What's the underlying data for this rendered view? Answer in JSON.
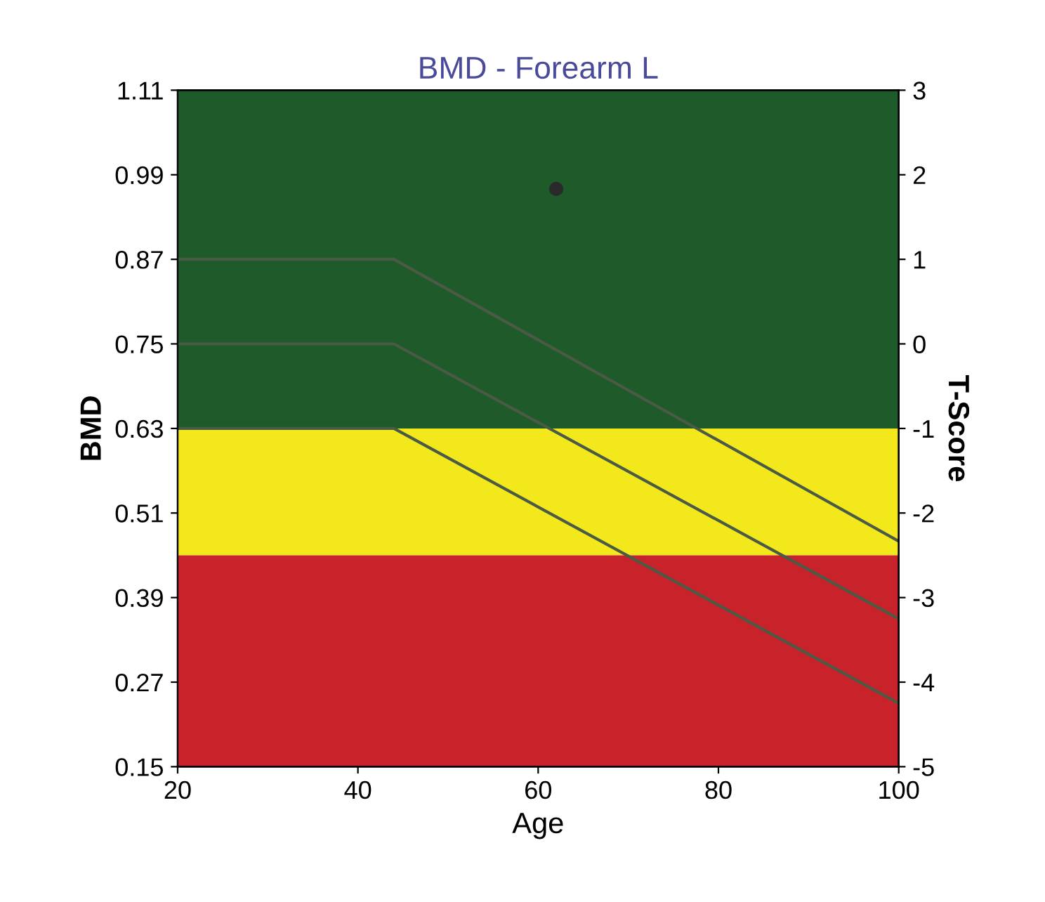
{
  "chart_data": {
    "type": "line",
    "title": "BMD - Forearm L",
    "xlabel": "Age",
    "ylabel": "BMD",
    "y2label": "T-Score",
    "xlim": [
      20,
      100
    ],
    "xticks": [
      20,
      40,
      60,
      80,
      100
    ],
    "ylim": [
      0.15,
      1.11
    ],
    "yticks": [
      0.15,
      0.27,
      0.39,
      0.51,
      0.63,
      0.75,
      0.87,
      0.99,
      1.11
    ],
    "y2lim": [
      -5,
      3
    ],
    "y2ticks": [
      -5,
      -4,
      -3,
      -2,
      -1,
      0,
      1,
      2,
      3
    ],
    "bands": [
      {
        "axis": "y",
        "from": 0.63,
        "to": 1.11,
        "color": "#1f5a2a"
      },
      {
        "axis": "y",
        "from": 0.45,
        "to": 0.63,
        "color": "#f2e81c"
      },
      {
        "axis": "y",
        "from": 0.15,
        "to": 0.45,
        "color": "#c8232a"
      }
    ],
    "series": [
      {
        "color": "#4a5a45",
        "x": [
          20,
          44,
          100
        ],
        "values": [
          0.87,
          0.87,
          0.47
        ]
      },
      {
        "color": "#4a5a45",
        "x": [
          20,
          44,
          100
        ],
        "values": [
          0.75,
          0.75,
          0.36
        ]
      },
      {
        "color": "#4a5a45",
        "x": [
          20,
          44,
          100
        ],
        "values": [
          0.63,
          0.63,
          0.24
        ]
      },
      {
        "type": "scatter",
        "color": "#2a2a2a",
        "x": [
          62
        ],
        "values": [
          0.97
        ],
        "marker": "circle"
      }
    ],
    "grid": false
  }
}
